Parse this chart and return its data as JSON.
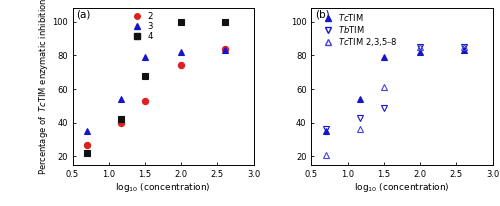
{
  "panel_a": {
    "title": "(a)",
    "xlabel": "log$_{10}$ (concentration)",
    "ylabel": "Percentage of  $\\it{Tc}$TIM enzymatic inhibition",
    "xlim": [
      0.5,
      3.0
    ],
    "ylim": [
      15,
      108
    ],
    "yticks": [
      20,
      40,
      60,
      80,
      100
    ],
    "xticks": [
      0.5,
      1.0,
      1.5,
      2.0,
      2.5,
      3.0
    ],
    "xticklabels": [
      "0.5",
      "1.0",
      "1.5",
      "2.0",
      "2.5",
      "3.0"
    ],
    "series": {
      "2": {
        "color": "#dd2020",
        "marker": "o",
        "markersize": 4.5,
        "x": [
          0.699,
          1.176,
          1.505,
          2.0,
          2.602
        ],
        "y": [
          27,
          40,
          53,
          74,
          84
        ],
        "sigmoid_p0": [
          60,
          1.8,
          3,
          20
        ]
      },
      "3": {
        "color": "#1515cc",
        "marker": "^",
        "markersize": 4.5,
        "x": [
          0.699,
          1.176,
          1.505,
          2.0,
          2.602
        ],
        "y": [
          35,
          54,
          79,
          82,
          83
        ],
        "sigmoid_p0": [
          50,
          1.3,
          6,
          30
        ]
      },
      "4": {
        "color": "#111111",
        "marker": "s",
        "markersize": 4.5,
        "x": [
          0.699,
          1.176,
          1.505,
          2.0,
          2.602
        ],
        "y": [
          22,
          42,
          68,
          100,
          100
        ],
        "sigmoid_p0": [
          80,
          1.6,
          5,
          18
        ]
      }
    }
  },
  "panel_b": {
    "title": "(b)",
    "xlabel": "log$_{10}$ (concentration)",
    "xlim": [
      0.5,
      3.0
    ],
    "ylim": [
      15,
      108
    ],
    "yticks": [
      20,
      40,
      60,
      80,
      100
    ],
    "xticks": [
      0.5,
      1.0,
      1.5,
      2.0,
      2.5,
      3.0
    ],
    "xticklabels": [
      "0.5",
      "1.0",
      "1.5",
      "2.0",
      "2.5",
      "3.0"
    ],
    "series": {
      "TcTIM": {
        "color": "#1515cc",
        "marker": "^",
        "markerfacecolor": "#1515cc",
        "markersize": 4.5,
        "linestyle": "-",
        "x": [
          0.699,
          1.176,
          1.505,
          2.0,
          2.602
        ],
        "y": [
          35,
          54,
          79,
          82,
          83
        ],
        "sigmoid_p0": [
          50,
          1.3,
          6,
          30
        ]
      },
      "TbTIM": {
        "color": "#1515cc",
        "marker": "v",
        "markerfacecolor": "none",
        "markersize": 4.5,
        "linestyle": "--",
        "x": [
          0.699,
          1.176,
          1.505,
          2.0,
          2.602
        ],
        "y": [
          36,
          43,
          49,
          85,
          85
        ],
        "sigmoid_p0": [
          50,
          1.8,
          5,
          30
        ]
      },
      "TcTIM_chimera": {
        "color": "#4444dd",
        "marker": "^",
        "markerfacecolor": "none",
        "markersize": 4.5,
        "linestyle": ":",
        "x": [
          0.699,
          1.176,
          1.505,
          2.0,
          2.602
        ],
        "y": [
          21,
          36,
          61,
          85,
          85
        ],
        "sigmoid_p0": [
          65,
          1.7,
          5,
          18
        ]
      }
    }
  },
  "legend_b": {
    "TcTIM": "$\\it{Tc}$TIM",
    "TbTIM": "$\\it{Tb}$TIM",
    "TcTIM_chimera": "$\\it{Tc}$TIM 2,3,5–8"
  }
}
